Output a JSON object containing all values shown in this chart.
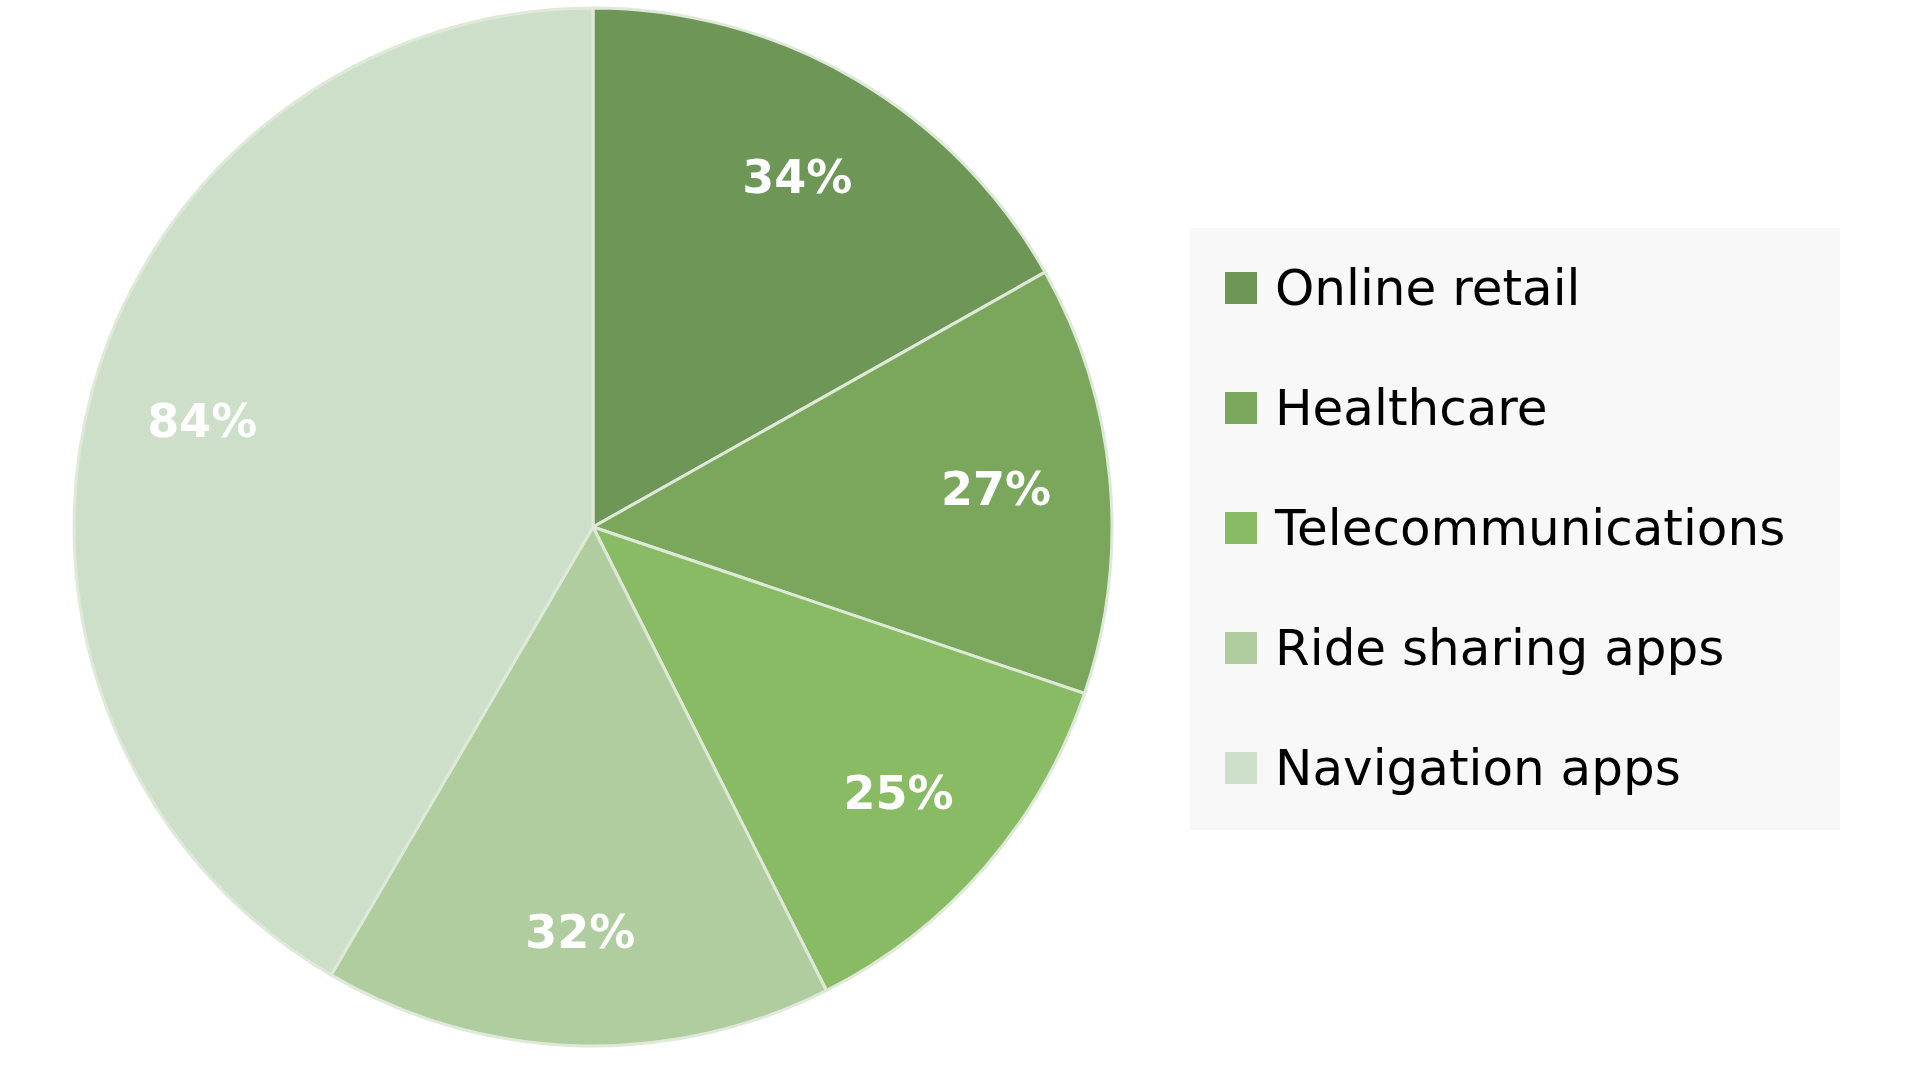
{
  "chart_data": {
    "type": "pie",
    "categories": [
      "Online retail",
      "Healthcare",
      "Telecommunications",
      "Ride sharing apps",
      "Navigation apps"
    ],
    "values": [
      34,
      27,
      25,
      32,
      84
    ],
    "colors": [
      "#6e9657",
      "#7aa75c",
      "#88bb63",
      "#b0cda0",
      "#cddfc8"
    ],
    "value_labels": [
      "34%",
      "27%",
      "25%",
      "32%",
      "84%"
    ],
    "legend": "right"
  }
}
